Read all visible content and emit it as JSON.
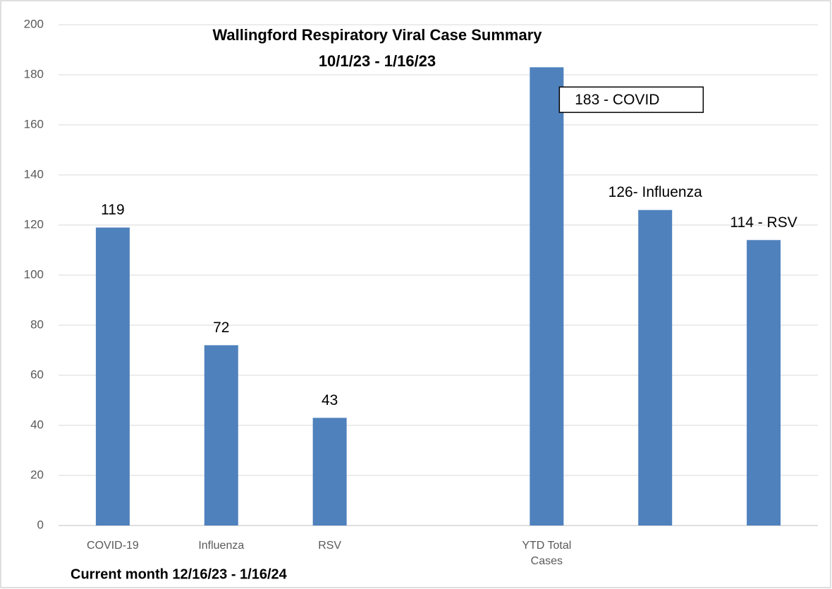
{
  "chart_data": {
    "type": "bar",
    "title": "Wallingford Respiratory Viral Case Summary",
    "subtitle": "10/1/23 - 1/16/23",
    "annotation": "Current month 12/16/23 - 1/16/24",
    "categories": [
      "COVID-19",
      "Influenza",
      "RSV",
      null,
      "YTD Total Cases",
      null,
      null
    ],
    "values": [
      119,
      72,
      43,
      null,
      183,
      126,
      114
    ],
    "value_labels": [
      "119",
      "72",
      "43",
      null,
      "183 - COVID",
      "126- Influenza",
      "114 - RSV"
    ],
    "color": "#4f81bd",
    "ylim": [
      0,
      200
    ],
    "yticks": [
      0,
      20,
      40,
      60,
      80,
      100,
      120,
      140,
      160,
      180,
      200
    ],
    "grid": true
  }
}
